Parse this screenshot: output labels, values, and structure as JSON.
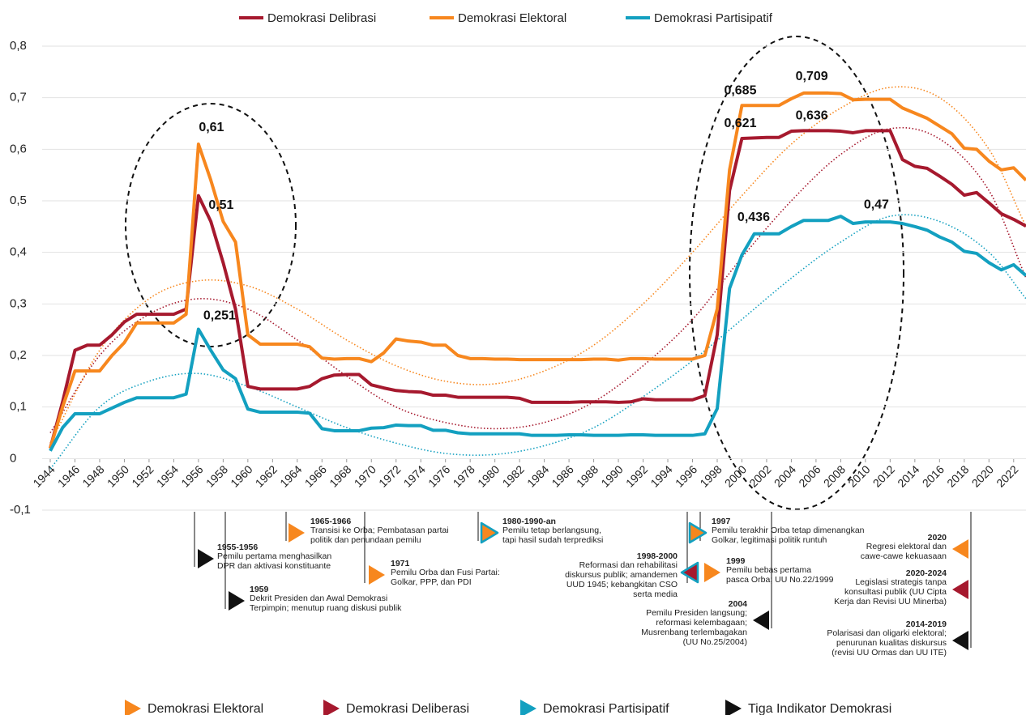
{
  "chart_data": {
    "type": "line",
    "x": [
      1944,
      1945,
      1946,
      1947,
      1948,
      1949,
      1950,
      1951,
      1952,
      1953,
      1954,
      1955,
      1956,
      1957,
      1958,
      1959,
      1960,
      1961,
      1962,
      1963,
      1964,
      1965,
      1966,
      1967,
      1968,
      1969,
      1970,
      1971,
      1972,
      1973,
      1974,
      1975,
      1976,
      1977,
      1978,
      1979,
      1980,
      1981,
      1982,
      1983,
      1984,
      1985,
      1986,
      1987,
      1988,
      1989,
      1990,
      1991,
      1992,
      1993,
      1994,
      1995,
      1996,
      1997,
      1998,
      1999,
      2000,
      2001,
      2002,
      2003,
      2004,
      2005,
      2006,
      2007,
      2008,
      2009,
      2010,
      2011,
      2012,
      2013,
      2014,
      2015,
      2016,
      2017,
      2018,
      2019,
      2020,
      2021,
      2022,
      2023
    ],
    "xlim": [
      1944,
      2023
    ],
    "xticks": [
      1944,
      1946,
      1948,
      1950,
      1952,
      1954,
      1956,
      1958,
      1960,
      1962,
      1964,
      1966,
      1968,
      1970,
      1972,
      1974,
      1976,
      1978,
      1980,
      1982,
      1984,
      1986,
      1988,
      1990,
      1992,
      1994,
      1996,
      1998,
      2000,
      2002,
      2004,
      2006,
      2008,
      2010,
      2012,
      2014,
      2016,
      2018,
      2020,
      2022
    ],
    "ylim": [
      -0.1,
      0.8
    ],
    "yticks": [
      {
        "value": -0.1,
        "label": "-0,1"
      },
      0,
      {
        "value": 0.1,
        "label": "0,1"
      },
      {
        "value": 0.2,
        "label": "0,2"
      },
      {
        "value": 0.3,
        "label": "0,3"
      },
      {
        "value": 0.4,
        "label": "0,4"
      },
      {
        "value": 0.5,
        "label": "0,5"
      },
      {
        "value": 0.6,
        "label": "0,6"
      },
      {
        "value": 0.7,
        "label": "0,7"
      },
      {
        "value": 0.8,
        "label": "0,8"
      }
    ],
    "grid": true,
    "legend": "top",
    "series": [
      {
        "name": "Demokrasi Delibrasi",
        "color": "#a6192e",
        "values": [
          0.02,
          0.11,
          0.21,
          0.22,
          0.22,
          0.24,
          0.265,
          0.28,
          0.28,
          0.28,
          0.28,
          0.29,
          0.51,
          0.46,
          0.38,
          0.29,
          0.14,
          0.135,
          0.135,
          0.135,
          0.135,
          0.14,
          0.155,
          0.162,
          0.163,
          0.163,
          0.143,
          0.137,
          0.132,
          0.13,
          0.129,
          0.123,
          0.123,
          0.119,
          0.119,
          0.119,
          0.119,
          0.119,
          0.117,
          0.109,
          0.109,
          0.109,
          0.109,
          0.11,
          0.11,
          0.11,
          0.109,
          0.11,
          0.116,
          0.114,
          0.114,
          0.114,
          0.114,
          0.122,
          0.24,
          0.52,
          0.621,
          0.622,
          0.623,
          0.623,
          0.635,
          0.636,
          0.636,
          0.636,
          0.635,
          0.632,
          0.636,
          0.636,
          0.636,
          0.58,
          0.567,
          0.563,
          0.548,
          0.532,
          0.511,
          0.516,
          0.496,
          0.475,
          0.464,
          0.451
        ],
        "value_labels": [
          null,
          null,
          null,
          null,
          null,
          null,
          null,
          null,
          null,
          null,
          null,
          null,
          "0,51",
          null,
          null,
          null,
          null,
          null,
          null,
          null,
          null,
          null,
          null,
          null,
          null,
          null,
          null,
          null,
          null,
          null,
          null,
          null,
          null,
          null,
          null,
          null,
          null,
          null,
          null,
          null,
          null,
          null,
          null,
          null,
          null,
          null,
          null,
          null,
          null,
          null,
          null,
          null,
          null,
          null,
          null,
          null,
          "0,621",
          null,
          null,
          null,
          null,
          "0,636",
          null,
          null,
          null,
          null,
          null,
          null,
          null,
          null,
          null,
          null,
          null,
          null,
          null,
          null,
          null,
          null,
          null,
          null
        ],
        "trend": {
          "x": [
            1944,
            1948,
            1952,
            1956,
            1960,
            1964,
            1968,
            1972,
            1976,
            1980,
            1984,
            1988,
            1992,
            1996,
            2000,
            2004,
            2008,
            2012,
            2016,
            2020,
            2023
          ],
          "values": [
            0.05,
            0.2,
            0.28,
            0.31,
            0.29,
            0.23,
            0.16,
            0.1,
            0.07,
            0.058,
            0.07,
            0.11,
            0.18,
            0.27,
            0.39,
            0.5,
            0.59,
            0.64,
            0.62,
            0.52,
            0.35
          ]
        }
      },
      {
        "name": "Demokrasi Elektoral",
        "color": "#f7871e",
        "values": [
          0.02,
          0.1,
          0.17,
          0.17,
          0.17,
          0.2,
          0.225,
          0.263,
          0.263,
          0.263,
          0.263,
          0.28,
          0.61,
          0.54,
          0.46,
          0.42,
          0.24,
          0.222,
          0.222,
          0.222,
          0.222,
          0.217,
          0.195,
          0.193,
          0.194,
          0.194,
          0.188,
          0.205,
          0.232,
          0.228,
          0.226,
          0.22,
          0.22,
          0.2,
          0.194,
          0.194,
          0.193,
          0.193,
          0.192,
          0.192,
          0.192,
          0.192,
          0.192,
          0.192,
          0.193,
          0.193,
          0.191,
          0.194,
          0.194,
          0.193,
          0.193,
          0.193,
          0.193,
          0.2,
          0.29,
          0.56,
          0.685,
          0.685,
          0.685,
          0.685,
          0.698,
          0.709,
          0.709,
          0.709,
          0.708,
          0.696,
          0.697,
          0.697,
          0.697,
          0.68,
          0.67,
          0.66,
          0.645,
          0.63,
          0.602,
          0.6,
          0.577,
          0.56,
          0.564,
          0.54
        ],
        "value_labels": [
          null,
          null,
          null,
          null,
          null,
          null,
          null,
          null,
          null,
          null,
          null,
          null,
          "0,61",
          null,
          null,
          null,
          null,
          null,
          null,
          null,
          null,
          null,
          null,
          null,
          null,
          null,
          null,
          null,
          null,
          null,
          null,
          null,
          null,
          null,
          null,
          null,
          null,
          null,
          null,
          null,
          null,
          null,
          null,
          null,
          null,
          null,
          null,
          null,
          null,
          null,
          null,
          null,
          null,
          null,
          null,
          null,
          "0,685",
          null,
          null,
          null,
          null,
          "0,709",
          null,
          null,
          null,
          null,
          null,
          null,
          null,
          null,
          null,
          null,
          null,
          null,
          null,
          null,
          null,
          null,
          null,
          null
        ],
        "trend": {
          "x": [
            1944,
            1948,
            1952,
            1956,
            1960,
            1964,
            1968,
            1972,
            1976,
            1980,
            1984,
            1988,
            1992,
            1996,
            2000,
            2004,
            2008,
            2012,
            2016,
            2020,
            2023
          ],
          "values": [
            0.03,
            0.21,
            0.31,
            0.345,
            0.335,
            0.29,
            0.23,
            0.18,
            0.15,
            0.145,
            0.17,
            0.22,
            0.3,
            0.4,
            0.51,
            0.61,
            0.68,
            0.72,
            0.7,
            0.6,
            0.45
          ]
        }
      },
      {
        "name": "Demokrasi Partisipatif",
        "color": "#13a0c0",
        "values": [
          0.015,
          0.06,
          0.087,
          0.087,
          0.087,
          0.098,
          0.109,
          0.118,
          0.118,
          0.118,
          0.118,
          0.125,
          0.251,
          0.21,
          0.172,
          0.155,
          0.096,
          0.09,
          0.09,
          0.09,
          0.09,
          0.088,
          0.058,
          0.054,
          0.054,
          0.054,
          0.059,
          0.06,
          0.065,
          0.064,
          0.064,
          0.055,
          0.055,
          0.05,
          0.048,
          0.048,
          0.048,
          0.048,
          0.048,
          0.045,
          0.045,
          0.045,
          0.046,
          0.046,
          0.045,
          0.045,
          0.045,
          0.046,
          0.046,
          0.045,
          0.045,
          0.045,
          0.045,
          0.048,
          0.097,
          0.33,
          0.395,
          0.436,
          0.436,
          0.436,
          0.45,
          0.462,
          0.462,
          0.462,
          0.47,
          0.456,
          0.459,
          0.459,
          0.459,
          0.456,
          0.45,
          0.443,
          0.43,
          0.42,
          0.402,
          0.398,
          0.38,
          0.366,
          0.376,
          0.355
        ],
        "value_labels": [
          null,
          null,
          null,
          null,
          null,
          null,
          null,
          null,
          null,
          null,
          null,
          null,
          "0,251",
          null,
          null,
          null,
          null,
          null,
          null,
          null,
          null,
          null,
          null,
          null,
          null,
          null,
          null,
          null,
          null,
          null,
          null,
          null,
          null,
          null,
          null,
          null,
          null,
          null,
          null,
          null,
          null,
          null,
          null,
          null,
          null,
          null,
          null,
          null,
          null,
          null,
          null,
          null,
          null,
          null,
          null,
          null,
          null,
          null,
          "0,436",
          null,
          null,
          null,
          null,
          null,
          "0,47",
          null,
          null,
          null,
          null,
          null,
          null,
          null,
          null,
          null,
          null,
          null,
          null,
          null,
          null,
          null
        ],
        "trend": {
          "x": [
            1944,
            1948,
            1952,
            1956,
            1960,
            1964,
            1968,
            1972,
            1976,
            1980,
            1984,
            1988,
            1992,
            1996,
            2000,
            2004,
            2008,
            2012,
            2016,
            2020,
            2023
          ],
          "values": [
            -0.02,
            0.1,
            0.15,
            0.165,
            0.14,
            0.1,
            0.06,
            0.03,
            0.01,
            0.008,
            0.025,
            0.06,
            0.12,
            0.19,
            0.27,
            0.35,
            0.42,
            0.47,
            0.46,
            0.4,
            0.31
          ]
        }
      }
    ],
    "events": [
      {
        "period": "1955-1956",
        "lines": [
          "Pemilu pertama menghasilkan",
          "DPR dan aktivasi konstituante"
        ],
        "color": "#111111",
        "direction": "right"
      },
      {
        "period": "1959",
        "lines": [
          "Dekrit Presiden dan Awal Demokrasi",
          "Terpimpin; menutup ruang diskusi publik"
        ],
        "color": "#111111",
        "direction": "right"
      },
      {
        "period": "1965-1966",
        "lines": [
          "Transisi ke Orba; Pembatasan partai",
          "politik dan penundaan pemilu"
        ],
        "color": "#f7871e",
        "direction": "right"
      },
      {
        "period": "1971",
        "lines": [
          "Pemilu Orba dan Fusi Partai:",
          "Golkar, PPP, dan PDI"
        ],
        "color": "#f7871e",
        "direction": "right"
      },
      {
        "period": "1980-1990-an",
        "lines": [
          "Pemilu tetap berlangsung,",
          "tapi hasil sudah terprediksi"
        ],
        "color": "#f7871e",
        "outline": "#13a0c0",
        "direction": "right"
      },
      {
        "period": "1997",
        "lines": [
          "Pemilu terakhir Orba tetap dimenangkan",
          "Golkar, legitimasi politik runtuh"
        ],
        "color": "#f7871e",
        "outline": "#13a0c0",
        "direction": "right"
      },
      {
        "period": "1998-2000",
        "lines": [
          "Reformasi dan rehabilitasi",
          "diskursus publik; amandemen",
          "UUD 1945; kebangkitan CSO",
          "serta media"
        ],
        "color": "#a6192e",
        "outline": "#13a0c0",
        "direction": "left"
      },
      {
        "period": "1999",
        "lines": [
          "Pemilu bebas pertama",
          "pasca Orba; UU No.22/1999"
        ],
        "color": "#f7871e",
        "direction": "right"
      },
      {
        "period": "2004",
        "lines": [
          "Pemilu Presiden langsung;",
          "reformasi kelembagaan;",
          "Musrenbang terlembagakan",
          "(UU No.25/2004)"
        ],
        "color": "#111111",
        "direction": "left"
      },
      {
        "period": "2020",
        "lines": [
          "Regresi elektoral dan",
          "cawe-cawe kekuasaan"
        ],
        "color": "#f7871e",
        "direction": "left"
      },
      {
        "period": "2020-2024",
        "lines": [
          "Legislasi strategis tanpa",
          "konsultasi publik (UU Cipta",
          "Kerja dan Revisi UU Minerba)"
        ],
        "color": "#a6192e",
        "direction": "left"
      },
      {
        "period": "2014-2019",
        "lines": [
          "Polarisasi dan oligarki elektoral;",
          "penurunan kualitas diskursus",
          "(revisi UU Ormas dan UU ITE)"
        ],
        "color": "#111111",
        "direction": "left"
      }
    ],
    "event_legend": [
      {
        "name": "Demokrasi Elektoral",
        "color": "#f7871e"
      },
      {
        "name": "Demokrasi Deliberasi",
        "color": "#a6192e"
      },
      {
        "name": "Demokrasi Partisipatif",
        "color": "#13a0c0"
      },
      {
        "name": "Tiga Indikator Demokrasi",
        "color": "#111111"
      }
    ]
  }
}
